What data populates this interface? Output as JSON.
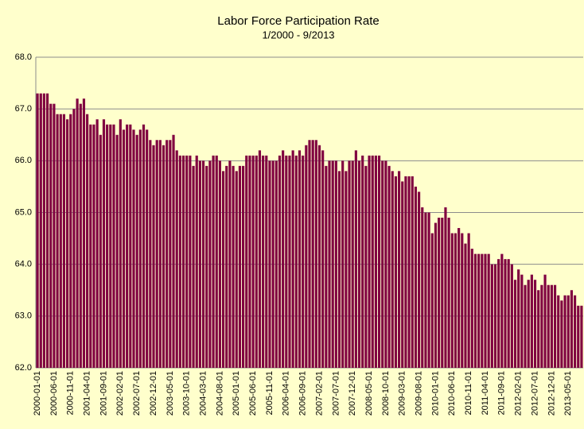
{
  "chart_data": {
    "type": "bar",
    "title": "Labor Force Participation Rate",
    "subtitle": "1/2000 - 9/2013",
    "categories": [
      "2000-01-01",
      null,
      null,
      null,
      null,
      "2000-06-01",
      null,
      null,
      null,
      null,
      "2000-11-01",
      null,
      null,
      null,
      null,
      "2001-04-01",
      null,
      null,
      null,
      null,
      "2001-09-01",
      null,
      null,
      null,
      null,
      "2002-02-01",
      null,
      null,
      null,
      null,
      "2002-07-01",
      null,
      null,
      null,
      null,
      "2002-12-01",
      null,
      null,
      null,
      null,
      "2003-05-01",
      null,
      null,
      null,
      null,
      "2003-10-01",
      null,
      null,
      null,
      null,
      "2004-03-01",
      null,
      null,
      null,
      null,
      "2004-08-01",
      null,
      null,
      null,
      null,
      "2005-01-01",
      null,
      null,
      null,
      null,
      "2005-06-01",
      null,
      null,
      null,
      null,
      "2005-11-01",
      null,
      null,
      null,
      null,
      "2006-04-01",
      null,
      null,
      null,
      null,
      "2006-09-01",
      null,
      null,
      null,
      null,
      "2007-02-01",
      null,
      null,
      null,
      null,
      "2007-07-01",
      null,
      null,
      null,
      null,
      "2007-12-01",
      null,
      null,
      null,
      null,
      "2008-05-01",
      null,
      null,
      null,
      null,
      "2008-10-01",
      null,
      null,
      null,
      null,
      "2009-03-01",
      null,
      null,
      null,
      null,
      "2009-08-01",
      null,
      null,
      null,
      null,
      "2010-01-01",
      null,
      null,
      null,
      null,
      "2010-06-01",
      null,
      null,
      null,
      null,
      "2010-11-01",
      null,
      null,
      null,
      null,
      "2011-04-01",
      null,
      null,
      null,
      null,
      "2011-09-01",
      null,
      null,
      null,
      null,
      "2012-02-01",
      null,
      null,
      null,
      null,
      "2012-07-01",
      null,
      null,
      null,
      null,
      "2012-12-01",
      null,
      null,
      null,
      null,
      "2013-05-01",
      null,
      null,
      null,
      null
    ],
    "values": [
      67.3,
      67.3,
      67.3,
      67.3,
      67.1,
      67.1,
      66.9,
      66.9,
      66.9,
      66.8,
      66.9,
      67.0,
      67.2,
      67.1,
      67.2,
      66.9,
      66.7,
      66.7,
      66.8,
      66.5,
      66.8,
      66.7,
      66.7,
      66.7,
      66.5,
      66.8,
      66.6,
      66.7,
      66.7,
      66.6,
      66.5,
      66.6,
      66.7,
      66.6,
      66.4,
      66.3,
      66.4,
      66.4,
      66.3,
      66.4,
      66.4,
      66.5,
      66.2,
      66.1,
      66.1,
      66.1,
      66.1,
      65.9,
      66.1,
      66.0,
      66.0,
      65.9,
      66.0,
      66.1,
      66.1,
      66.0,
      65.8,
      65.9,
      66.0,
      65.9,
      65.8,
      65.9,
      65.9,
      66.1,
      66.1,
      66.1,
      66.1,
      66.2,
      66.1,
      66.1,
      66.0,
      66.0,
      66.0,
      66.1,
      66.2,
      66.1,
      66.1,
      66.2,
      66.1,
      66.2,
      66.1,
      66.3,
      66.4,
      66.4,
      66.4,
      66.3,
      66.2,
      65.9,
      66.0,
      66.0,
      66.0,
      65.8,
      66.0,
      65.8,
      66.0,
      66.0,
      66.2,
      66.0,
      66.1,
      65.9,
      66.1,
      66.1,
      66.1,
      66.1,
      66.0,
      66.0,
      65.9,
      65.8,
      65.7,
      65.8,
      65.6,
      65.7,
      65.7,
      65.7,
      65.5,
      65.4,
      65.1,
      65.0,
      65.0,
      64.6,
      64.8,
      64.9,
      64.9,
      65.1,
      64.9,
      64.6,
      64.6,
      64.7,
      64.6,
      64.4,
      64.6,
      64.3,
      64.2,
      64.2,
      64.2,
      64.2,
      64.2,
      64.0,
      64.0,
      64.1,
      64.2,
      64.1,
      64.1,
      64.0,
      63.7,
      63.9,
      63.8,
      63.6,
      63.7,
      63.8,
      63.7,
      63.5,
      63.6,
      63.8,
      63.6,
      63.6,
      63.6,
      63.4,
      63.3,
      63.4,
      63.4,
      63.5,
      63.4,
      63.2,
      63.2
    ],
    "color": "#800040",
    "ylim": [
      62,
      68
    ],
    "yticks": [
      {
        "value": 62,
        "label": "62.0"
      },
      {
        "value": 63,
        "label": "63.0"
      },
      {
        "value": 64,
        "label": "64.0"
      },
      {
        "value": 65,
        "label": "65.0"
      },
      {
        "value": 66,
        "label": "66.0"
      },
      {
        "value": 67,
        "label": "67.0"
      },
      {
        "value": 68,
        "label": "68.0"
      }
    ],
    "grid": true
  }
}
